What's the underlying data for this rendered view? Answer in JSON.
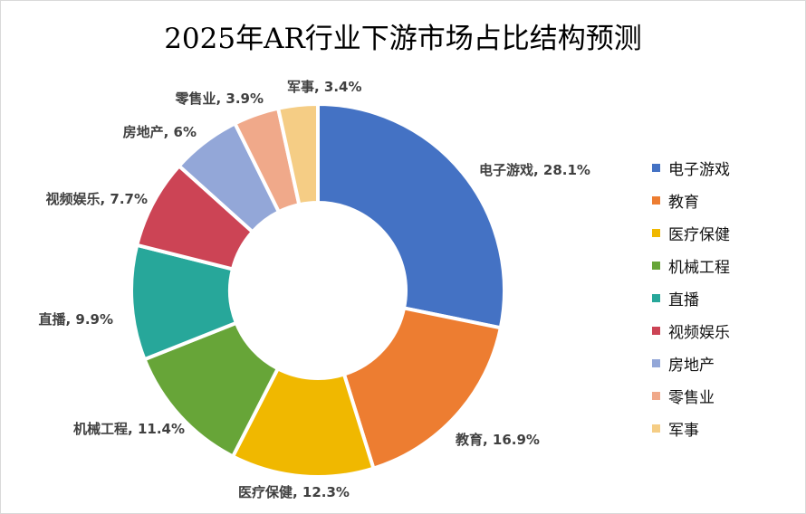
{
  "chart_data": {
    "type": "pie",
    "variant": "donut",
    "title": "2025年AR行业下游市场占比结构预测",
    "categories": [
      "电子游戏",
      "教育",
      "医疗保健",
      "机械工程",
      "直播",
      "视频娱乐",
      "房地产",
      "零售业",
      "军事"
    ],
    "values": [
      28.1,
      16.9,
      12.3,
      11.4,
      9.9,
      7.7,
      6,
      3.9,
      3.4
    ],
    "value_labels": [
      "28.1%",
      "16.9%",
      "12.3%",
      "11.4%",
      "9.9%",
      "7.7%",
      "6%",
      "3.9%",
      "3.4%"
    ],
    "colors": [
      "#4472C4",
      "#ED7D31",
      "#F0B800",
      "#67A538",
      "#27A79A",
      "#CC4455",
      "#93A7D8",
      "#F0A98A",
      "#F5CD85"
    ],
    "legend_position": "right",
    "data_labels": "category, value"
  }
}
